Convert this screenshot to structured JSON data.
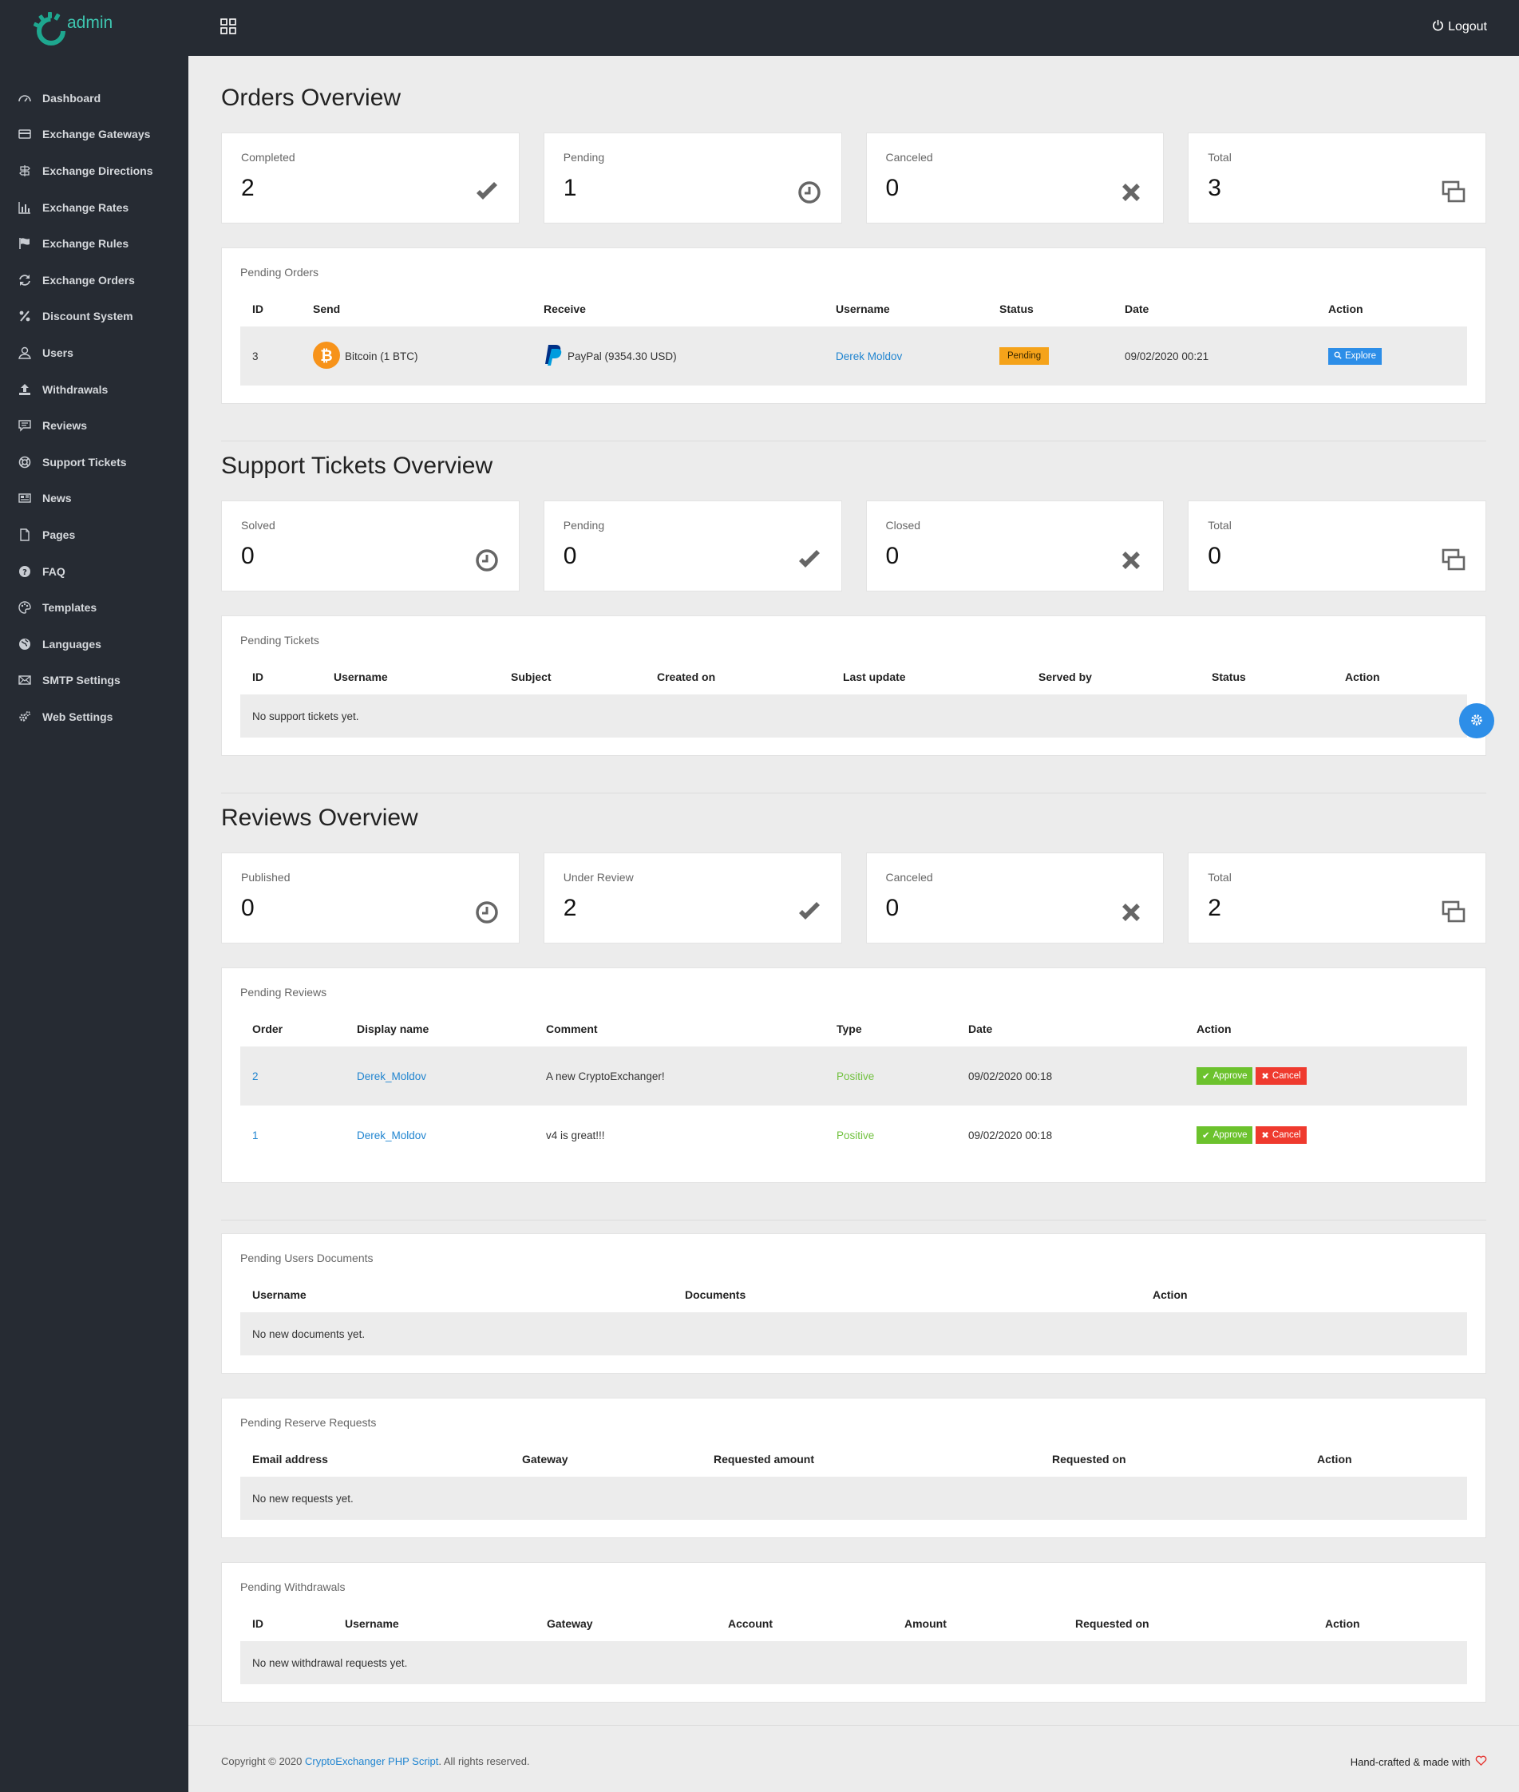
{
  "brand": {
    "logo_text": "admin"
  },
  "topbar": {
    "logout_label": "Logout"
  },
  "sidebar": {
    "items": [
      {
        "label": "Dashboard",
        "icon": "dashboard-icon"
      },
      {
        "label": "Exchange Gateways",
        "icon": "card-icon"
      },
      {
        "label": "Exchange Directions",
        "icon": "signpost-icon"
      },
      {
        "label": "Exchange Rates",
        "icon": "bar-chart-icon"
      },
      {
        "label": "Exchange Rules",
        "icon": "flag-icon"
      },
      {
        "label": "Exchange Orders",
        "icon": "refresh-icon"
      },
      {
        "label": "Discount System",
        "icon": "percent-icon"
      },
      {
        "label": "Users",
        "icon": "user-icon"
      },
      {
        "label": "Withdrawals",
        "icon": "upload-icon"
      },
      {
        "label": "Reviews",
        "icon": "comment-icon"
      },
      {
        "label": "Support Tickets",
        "icon": "lifebuoy-icon"
      },
      {
        "label": "News",
        "icon": "newspaper-icon"
      },
      {
        "label": "Pages",
        "icon": "page-icon"
      },
      {
        "label": "FAQ",
        "icon": "question-icon"
      },
      {
        "label": "Templates",
        "icon": "palette-icon"
      },
      {
        "label": "Languages",
        "icon": "globe-icon"
      },
      {
        "label": "SMTP Settings",
        "icon": "envelope-icon"
      },
      {
        "label": "Web Settings",
        "icon": "gears-icon"
      }
    ]
  },
  "orders": {
    "title": "Orders Overview",
    "stats": [
      {
        "label": "Completed",
        "value": "2",
        "icon": "check-icon"
      },
      {
        "label": "Pending",
        "value": "1",
        "icon": "clock-icon"
      },
      {
        "label": "Canceled",
        "value": "0",
        "icon": "times-icon"
      },
      {
        "label": "Total",
        "value": "3",
        "icon": "clone-icon"
      }
    ],
    "table": {
      "title": "Pending Orders",
      "headers": [
        "ID",
        "Send",
        "Receive",
        "Username",
        "Status",
        "Date",
        "Action"
      ],
      "rows": [
        {
          "id": "3",
          "send": "Bitcoin (1 BTC)",
          "receive": "PayPal (9354.30 USD)",
          "username": "Derek Moldov",
          "status": "Pending",
          "date": "09/02/2020 00:21",
          "action": "Explore"
        }
      ]
    }
  },
  "tickets": {
    "title": "Support Tickets Overview",
    "stats": [
      {
        "label": "Solved",
        "value": "0",
        "icon": "clock-icon"
      },
      {
        "label": "Pending",
        "value": "0",
        "icon": "check-icon"
      },
      {
        "label": "Closed",
        "value": "0",
        "icon": "times-icon"
      },
      {
        "label": "Total",
        "value": "0",
        "icon": "clone-icon"
      }
    ],
    "table": {
      "title": "Pending Tickets",
      "headers": [
        "ID",
        "Username",
        "Subject",
        "Created on",
        "Last update",
        "Served by",
        "Status",
        "Action"
      ],
      "empty": "No support tickets yet."
    }
  },
  "reviews": {
    "title": "Reviews Overview",
    "stats": [
      {
        "label": "Published",
        "value": "0",
        "icon": "clock-icon"
      },
      {
        "label": "Under Review",
        "value": "2",
        "icon": "check-icon"
      },
      {
        "label": "Canceled",
        "value": "0",
        "icon": "times-icon"
      },
      {
        "label": "Total",
        "value": "2",
        "icon": "clone-icon"
      }
    ],
    "table": {
      "title": "Pending Reviews",
      "headers": [
        "Order",
        "Display name",
        "Comment",
        "Type",
        "Date",
        "Action"
      ],
      "rows": [
        {
          "order": "2",
          "name": "Derek_Moldov",
          "comment": "A new CryptoExchanger!",
          "type": "Positive",
          "date": "09/02/2020 00:18",
          "approve": "Approve",
          "cancel": "Cancel"
        },
        {
          "order": "1",
          "name": "Derek_Moldov",
          "comment": "v4 is great!!!",
          "type": "Positive",
          "date": "09/02/2020 00:18",
          "approve": "Approve",
          "cancel": "Cancel"
        }
      ]
    }
  },
  "documents": {
    "title": "Pending Users Documents",
    "headers": [
      "Username",
      "Documents",
      "Action"
    ],
    "empty": "No new documents yet."
  },
  "reserve": {
    "title": "Pending Reserve Requests",
    "headers": [
      "Email address",
      "Gateway",
      "Requested amount",
      "Requested on",
      "Action"
    ],
    "empty": "No new requests yet."
  },
  "withdrawals": {
    "title": "Pending Withdrawals",
    "headers": [
      "ID",
      "Username",
      "Gateway",
      "Account",
      "Amount",
      "Requested on",
      "Action"
    ],
    "empty": "No new withdrawal requests yet."
  },
  "footer": {
    "copyright_prefix": "Copyright © 2020 ",
    "copyright_link": "CryptoExchanger PHP Script",
    "copyright_suffix": ". All rights reserved.",
    "right_text": "Hand-crafted & made with"
  }
}
